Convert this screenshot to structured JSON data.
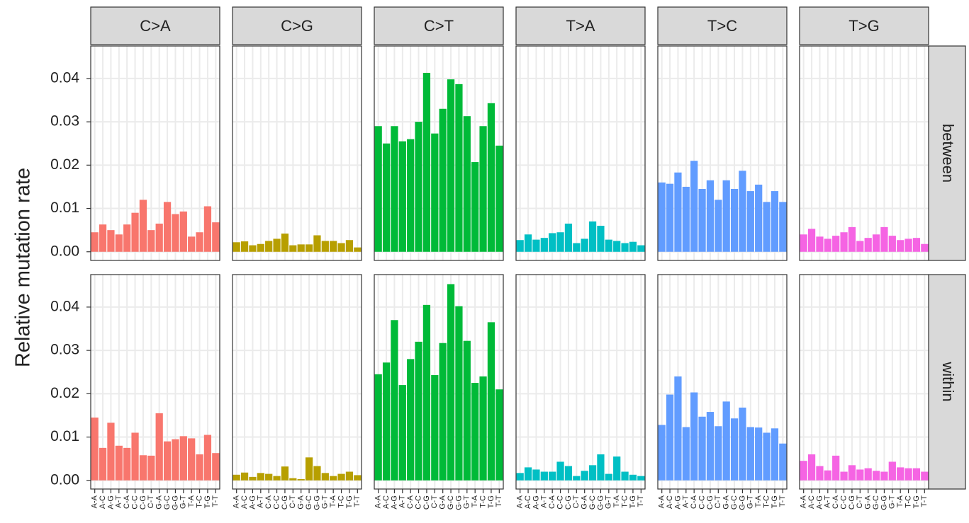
{
  "chart_data": {
    "type": "bar",
    "y_label": "Relative mutation rate",
    "column_names": [
      "C>A",
      "C>G",
      "C>T",
      "T>A",
      "T>C",
      "T>G"
    ],
    "column_colors": [
      "#F8766D",
      "#B79F00",
      "#00BA38",
      "#00BFC4",
      "#619CFF",
      "#F564E3"
    ],
    "row_names": [
      "between",
      "within"
    ],
    "categories": [
      "A-A",
      "A-C",
      "A-G",
      "A-T",
      "C-A",
      "C-C",
      "C-G",
      "C-T",
      "G-A",
      "G-C",
      "G-G",
      "G-T",
      "T-A",
      "T-C",
      "T-G",
      "T-T"
    ],
    "ylim": [
      -0.002,
      0.0475
    ],
    "yticks": [
      {
        "value": 0,
        "label": "0.00"
      },
      0.01,
      0.02,
      0.03,
      0.04
    ],
    "grid": true,
    "values": [
      [
        [
          0.0045,
          0.0063,
          0.005,
          0.004,
          0.0063,
          0.009,
          0.012,
          0.005,
          0.0065,
          0.0115,
          0.0087,
          0.0093,
          0.0035,
          0.0045,
          0.0105,
          0.0068
        ],
        [
          0.0022,
          0.0024,
          0.0015,
          0.0018,
          0.0025,
          0.003,
          0.0042,
          0.0015,
          0.0017,
          0.0017,
          0.0038,
          0.0025,
          0.0025,
          0.002,
          0.0027,
          0.001
        ],
        [
          0.029,
          0.025,
          0.029,
          0.0255,
          0.026,
          0.03,
          0.0413,
          0.0273,
          0.033,
          0.0398,
          0.0387,
          0.0313,
          0.0207,
          0.029,
          0.0343,
          0.0245
        ],
        [
          0.0027,
          0.004,
          0.0028,
          0.0032,
          0.0043,
          0.0045,
          0.0065,
          0.002,
          0.003,
          0.007,
          0.006,
          0.0028,
          0.0025,
          0.002,
          0.0023,
          0.0015
        ],
        [
          0.016,
          0.0157,
          0.0183,
          0.015,
          0.021,
          0.0145,
          0.0165,
          0.012,
          0.0165,
          0.0145,
          0.0187,
          0.014,
          0.0155,
          0.0115,
          0.014,
          0.0115
        ],
        [
          0.004,
          0.0053,
          0.0035,
          0.003,
          0.0037,
          0.0045,
          0.0057,
          0.0025,
          0.0032,
          0.004,
          0.0057,
          0.0037,
          0.0027,
          0.003,
          0.0032,
          0.0018
        ]
      ],
      [
        [
          0.0145,
          0.0075,
          0.0133,
          0.008,
          0.0075,
          0.011,
          0.0058,
          0.0057,
          0.0155,
          0.009,
          0.0095,
          0.0102,
          0.0097,
          0.006,
          0.0105,
          0.0063
        ],
        [
          0.0013,
          0.0018,
          0.0008,
          0.0017,
          0.0015,
          0.001,
          0.0032,
          0.0005,
          0.0003,
          0.0053,
          0.0033,
          0.0017,
          0.001,
          0.0015,
          0.002,
          0.0012
        ],
        [
          0.0245,
          0.0272,
          0.037,
          0.022,
          0.028,
          0.032,
          0.0405,
          0.0243,
          0.0317,
          0.0453,
          0.0402,
          0.0322,
          0.0225,
          0.024,
          0.0365,
          0.021
        ],
        [
          0.0017,
          0.003,
          0.0025,
          0.002,
          0.002,
          0.0043,
          0.0033,
          0.001,
          0.0022,
          0.0035,
          0.006,
          0.0015,
          0.0055,
          0.002,
          0.0013,
          0.001
        ],
        [
          0.0128,
          0.0198,
          0.024,
          0.0123,
          0.0203,
          0.0147,
          0.0158,
          0.0125,
          0.0182,
          0.0143,
          0.0168,
          0.0123,
          0.0122,
          0.011,
          0.012,
          0.0085
        ],
        [
          0.0045,
          0.006,
          0.0033,
          0.0023,
          0.0057,
          0.002,
          0.0035,
          0.0025,
          0.0028,
          0.0022,
          0.002,
          0.0043,
          0.003,
          0.0028,
          0.0028,
          0.002
        ]
      ]
    ]
  }
}
